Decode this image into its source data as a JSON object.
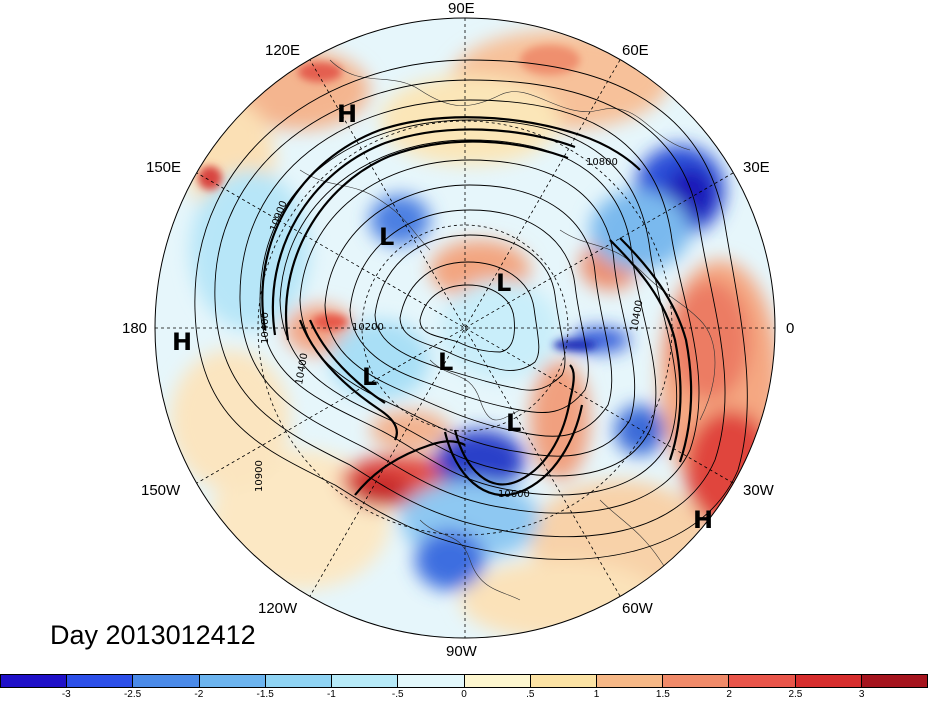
{
  "figure": {
    "title_text": "Day 2013012412"
  },
  "longitude_labels": [
    {
      "text": "90E"
    },
    {
      "text": "60E"
    },
    {
      "text": "30E"
    },
    {
      "text": "0"
    },
    {
      "text": "30W"
    },
    {
      "text": "60W"
    },
    {
      "text": "90W"
    },
    {
      "text": "120W"
    },
    {
      "text": "150W"
    },
    {
      "text": "180"
    },
    {
      "text": "150E"
    },
    {
      "text": "120E"
    }
  ],
  "pressure_centers": [
    {
      "text": "H",
      "name": "high-pressure-eurasia"
    },
    {
      "text": "L",
      "name": "low-pressure-siberia"
    },
    {
      "text": "L",
      "name": "low-pressure-arctic"
    },
    {
      "text": "L",
      "name": "low-pressure-alaska"
    },
    {
      "text": "L",
      "name": "low-pressure-pole"
    },
    {
      "text": "L",
      "name": "low-pressure-canada"
    },
    {
      "text": "H",
      "name": "high-pressure-pacific"
    },
    {
      "text": "H",
      "name": "high-pressure-atlantic"
    }
  ],
  "contour_labels": [
    "10800",
    "10900",
    "10600",
    "10900",
    "10400",
    "10400",
    "10200",
    "10400"
  ],
  "colorbar": {
    "ticks": [
      "-3",
      "-2.5",
      "-2",
      "-1.5",
      "-1",
      "-.5",
      "0",
      ".5",
      "1",
      "1.5",
      "2",
      "2.5",
      "3"
    ],
    "colors": [
      "#1f10c8",
      "#2c4fe8",
      "#4a8ae8",
      "#6cb4ef",
      "#8fd3f3",
      "#b7eaf8",
      "#e2f7fb",
      "#fdf6cf",
      "#fbe2a4",
      "#f6b887",
      "#f08a69",
      "#e9554a",
      "#d62d2d",
      "#a5141e"
    ]
  }
}
